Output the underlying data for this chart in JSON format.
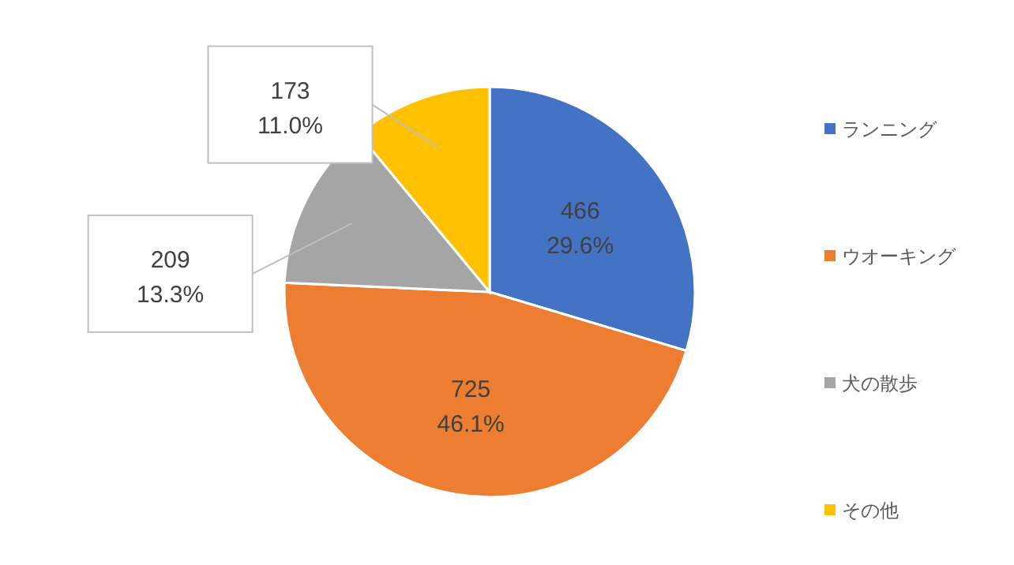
{
  "chart_data": {
    "type": "pie",
    "categories": [
      "ランニング",
      "ウオーキング",
      "犬の散歩",
      "その他"
    ],
    "values": [
      466,
      725,
      209,
      173
    ],
    "value_labels": [
      "466\n29.6%",
      "725\n46.1%",
      "209\n13.3%",
      "173\n11.0%"
    ],
    "colors": [
      "#4472c4",
      "#ed7d31",
      "#a5a5a5",
      "#ffc000"
    ],
    "legend": "right"
  }
}
